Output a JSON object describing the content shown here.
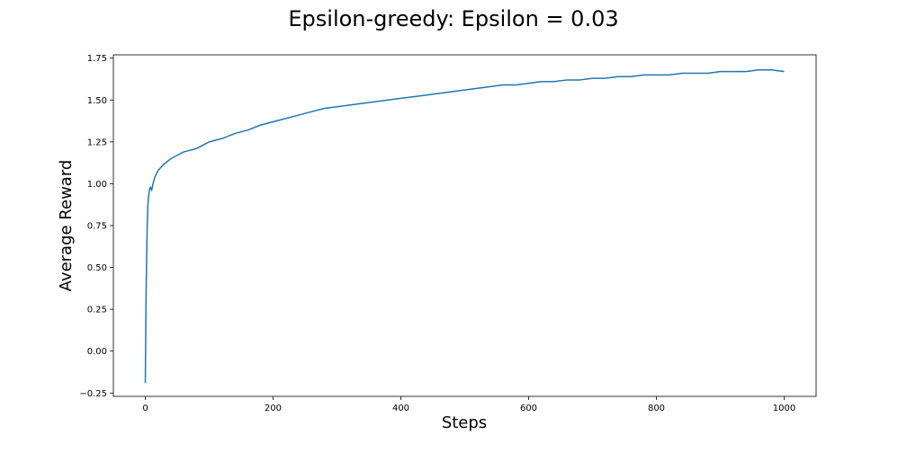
{
  "chart_data": {
    "type": "line",
    "title": "Epsilon-greedy: Epsilon = 0.03",
    "xlabel": "Steps",
    "ylabel": "Average Reward",
    "xlim": [
      -50,
      1050
    ],
    "ylim": [
      -0.27,
      1.77
    ],
    "xticks": [
      0,
      200,
      400,
      600,
      800,
      1000
    ],
    "yticks": [
      -0.25,
      0.0,
      0.25,
      0.5,
      0.75,
      1.0,
      1.25,
      1.5,
      1.75
    ],
    "xtick_labels": [
      "0",
      "200",
      "400",
      "600",
      "800",
      "1000"
    ],
    "ytick_labels": [
      "−0.25",
      "0.00",
      "0.25",
      "0.50",
      "0.75",
      "1.00",
      "1.25",
      "1.50",
      "1.75"
    ],
    "grid": false,
    "line_color": "#1f77b4",
    "series": [
      {
        "x": [
          0,
          1,
          2,
          3,
          4,
          5,
          6,
          7,
          8,
          10,
          12,
          15,
          20,
          25,
          30,
          40,
          50,
          60,
          70,
          80,
          90,
          100,
          120,
          140,
          160,
          180,
          200,
          220,
          240,
          260,
          280,
          300,
          320,
          340,
          360,
          380,
          400,
          420,
          440,
          460,
          480,
          500,
          520,
          540,
          560,
          580,
          600,
          620,
          640,
          660,
          680,
          700,
          720,
          740,
          760,
          780,
          800,
          820,
          840,
          860,
          880,
          900,
          920,
          940,
          960,
          980,
          1000
        ],
        "y": [
          -0.19,
          0.28,
          0.55,
          0.75,
          0.87,
          0.92,
          0.95,
          0.97,
          0.98,
          0.96,
          1.0,
          1.04,
          1.08,
          1.1,
          1.12,
          1.15,
          1.17,
          1.19,
          1.2,
          1.21,
          1.23,
          1.25,
          1.27,
          1.3,
          1.32,
          1.35,
          1.37,
          1.39,
          1.41,
          1.43,
          1.45,
          1.46,
          1.47,
          1.48,
          1.49,
          1.5,
          1.51,
          1.52,
          1.53,
          1.54,
          1.55,
          1.56,
          1.57,
          1.58,
          1.59,
          1.59,
          1.6,
          1.61,
          1.61,
          1.62,
          1.62,
          1.63,
          1.63,
          1.64,
          1.64,
          1.65,
          1.65,
          1.65,
          1.66,
          1.66,
          1.66,
          1.67,
          1.67,
          1.67,
          1.68,
          1.68,
          1.67
        ]
      }
    ]
  }
}
